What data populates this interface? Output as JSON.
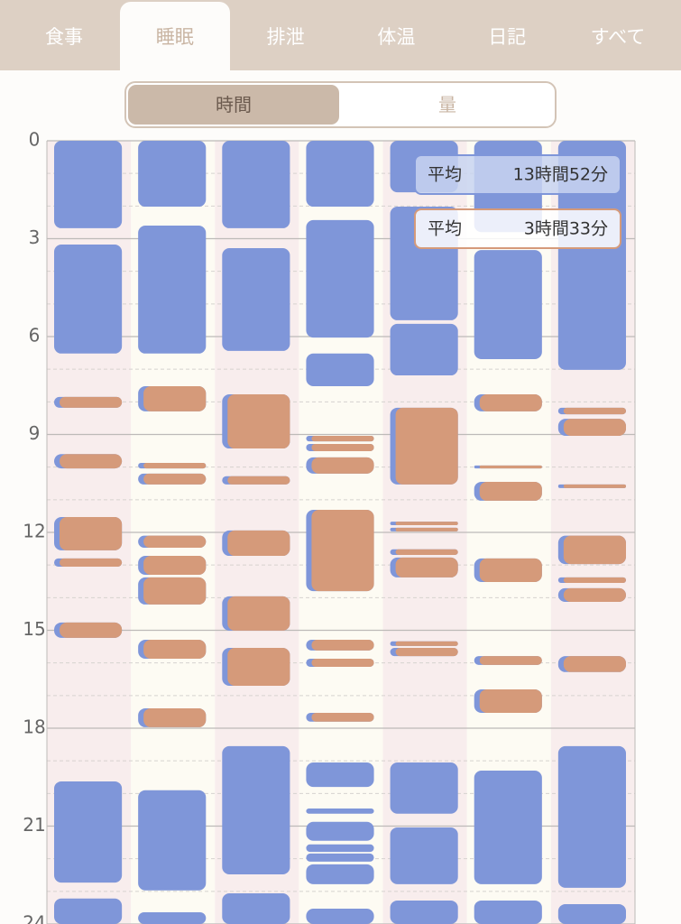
{
  "tabs": [
    "食事",
    "睡眠",
    "排泄",
    "体温",
    "日記",
    "すべて"
  ],
  "active_tab": 1,
  "segments": [
    "時間",
    "量"
  ],
  "active_segment": 0,
  "chart_data": {
    "type": "timeline",
    "ylim": [
      0,
      24
    ],
    "yticks": [
      0,
      3,
      6,
      9,
      12,
      15,
      18,
      21,
      24
    ],
    "minor_yticks": [
      1,
      2,
      4,
      5,
      7,
      8,
      10,
      11,
      13,
      14,
      16,
      17,
      19,
      20,
      22,
      23
    ],
    "sleep_color": "#7f96d9",
    "awake_color": "#d59a7a",
    "averages": [
      {
        "label": "平均",
        "value": "13時間52分",
        "color": "#7f96d9"
      },
      {
        "label": "平均",
        "value": "3時間33分",
        "color": "#d59a7a"
      }
    ],
    "columns": [
      {
        "background": "#f8eded",
        "sleep": [
          [
            0,
            2.68
          ],
          [
            3.18,
            6.52
          ],
          [
            19.63,
            22.73
          ],
          [
            23.22,
            24
          ]
        ],
        "awake": [
          [
            7.85,
            8.18
          ],
          [
            9.6,
            10.04
          ],
          [
            11.53,
            12.55
          ],
          [
            12.8,
            13.05
          ],
          [
            14.76,
            15.23
          ]
        ]
      },
      {
        "background": "#fdfbf3",
        "sleep": [
          [
            0,
            2.02
          ],
          [
            2.6,
            6.52
          ],
          [
            19.9,
            22.97
          ],
          [
            23.64,
            24
          ]
        ],
        "awake": [
          [
            7.52,
            8.29
          ],
          [
            9.87,
            10.04
          ],
          [
            10.2,
            10.53
          ],
          [
            12.1,
            12.47
          ],
          [
            12.72,
            13.3
          ],
          [
            13.38,
            14.21
          ],
          [
            15.29,
            15.87
          ],
          [
            17.39,
            17.97
          ]
        ]
      },
      {
        "background": "#f8eded",
        "sleep": [
          [
            0,
            2.68
          ],
          [
            3.29,
            6.44
          ],
          [
            18.55,
            22.48
          ],
          [
            23.06,
            24
          ]
        ],
        "awake": [
          [
            7.77,
            9.43
          ],
          [
            10.28,
            10.53
          ],
          [
            11.94,
            12.72
          ],
          [
            13.96,
            15.01
          ],
          [
            15.54,
            16.7
          ]
        ]
      },
      {
        "background": "#fdfbf3",
        "sleep": [
          [
            0,
            2.02
          ],
          [
            2.43,
            6.03
          ],
          [
            6.52,
            7.52
          ],
          [
            19.05,
            19.8
          ],
          [
            20.46,
            20.62
          ],
          [
            20.87,
            21.45
          ],
          [
            21.56,
            21.79
          ],
          [
            21.84,
            22.09
          ],
          [
            22.17,
            22.78
          ],
          [
            23.53,
            24
          ]
        ],
        "awake": [
          [
            9.04,
            9.21
          ],
          [
            9.29,
            9.51
          ],
          [
            9.7,
            10.2
          ],
          [
            11.31,
            13.8
          ],
          [
            15.29,
            15.62
          ],
          [
            15.87,
            16.12
          ],
          [
            17.53,
            17.8
          ]
        ]
      },
      {
        "background": "#f8eded",
        "sleep": [
          [
            0,
            1.58
          ],
          [
            2.02,
            5.5
          ],
          [
            5.61,
            7.19
          ],
          [
            19.05,
            20.62
          ],
          [
            21.04,
            22.78
          ],
          [
            23.28,
            24
          ]
        ],
        "awake": [
          [
            8.18,
            10.53
          ],
          [
            11.67,
            11.78
          ],
          [
            11.86,
            11.97
          ],
          [
            12.52,
            12.69
          ],
          [
            12.77,
            13.38
          ],
          [
            15.34,
            15.48
          ],
          [
            15.54,
            15.79
          ]
        ]
      },
      {
        "background": "#fdfbf3",
        "sleep": [
          [
            0,
            2.8
          ],
          [
            3.35,
            6.69
          ],
          [
            19.3,
            22.78
          ],
          [
            23.28,
            24
          ]
        ],
        "awake": [
          [
            7.77,
            8.29
          ],
          [
            9.95,
            10.04
          ],
          [
            10.45,
            11.03
          ],
          [
            12.8,
            13.52
          ],
          [
            15.79,
            16.06
          ],
          [
            16.81,
            17.53
          ]
        ]
      },
      {
        "background": "#f8eded",
        "sleep": [
          [
            0,
            7.02
          ],
          [
            18.55,
            22.89
          ],
          [
            23.39,
            24
          ]
        ],
        "awake": [
          [
            8.18,
            8.38
          ],
          [
            8.52,
            9.04
          ],
          [
            10.53,
            10.64
          ],
          [
            12.1,
            12.97
          ],
          [
            13.38,
            13.55
          ],
          [
            13.71,
            14.13
          ],
          [
            15.79,
            16.28
          ]
        ]
      }
    ]
  }
}
